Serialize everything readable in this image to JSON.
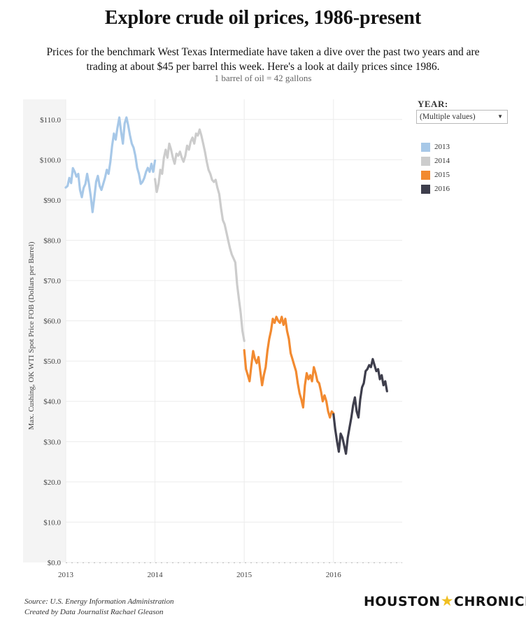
{
  "header": {
    "title": "Explore crude oil prices, 1986-present",
    "subtitle": "Prices for the benchmark West Texas Intermediate have taken a dive over the past two years and are trading at about $45 per barrel this week. Here's a look at daily prices since 1986.",
    "note": "1 barrel of oil = 42 gallons"
  },
  "filter": {
    "label": "YEAR:",
    "selected": "(Multiple values)",
    "dropdown_icon": "triangle-down-icon"
  },
  "legend": {
    "items": [
      {
        "label": "2013",
        "color": "#a7c8e8"
      },
      {
        "label": "2014",
        "color": "#cccccc"
      },
      {
        "label": "2015",
        "color": "#f28a30"
      },
      {
        "label": "2016",
        "color": "#3e3e4c"
      }
    ]
  },
  "footer": {
    "source": "Source:  U.S. Energy Information Administration",
    "credit": "Created by Data Journalist Rachael Gleason",
    "logo_left": "HOUSTON",
    "logo_right": "CHRONICLE"
  },
  "chart_data": {
    "type": "line",
    "title": "Explore crude oil prices, 1986-present",
    "ylabel": "Max. Cushing, OK WTI Spot Price FOB (Dollars per Barrel)",
    "xlabel": "",
    "ylim": [
      0,
      115
    ],
    "xlim": [
      2013.0,
      2016.77
    ],
    "y_ticks": [
      0,
      10,
      20,
      30,
      40,
      50,
      60,
      70,
      80,
      90,
      100,
      110
    ],
    "y_tick_labels": [
      "$0.0",
      "$10.0",
      "$20.0",
      "$30.0",
      "$40.0",
      "$50.0",
      "$60.0",
      "$70.0",
      "$80.0",
      "$90.0",
      "$100.0",
      "$110.0"
    ],
    "x_ticks": [
      2013,
      2014,
      2015,
      2016
    ],
    "x_tick_labels": [
      "2013",
      "2014",
      "2015",
      "2016"
    ],
    "grid": true,
    "legend_position": "right",
    "series": [
      {
        "name": "2013",
        "color": "#a7c8e8",
        "x": [
          2013.0,
          2013.02,
          2013.04,
          2013.06,
          2013.08,
          2013.1,
          2013.12,
          2013.14,
          2013.16,
          2013.18,
          2013.2,
          2013.22,
          2013.24,
          2013.26,
          2013.28,
          2013.3,
          2013.32,
          2013.34,
          2013.36,
          2013.38,
          2013.4,
          2013.42,
          2013.44,
          2013.46,
          2013.48,
          2013.5,
          2013.52,
          2013.54,
          2013.56,
          2013.58,
          2013.6,
          2013.62,
          2013.64,
          2013.66,
          2013.68,
          2013.7,
          2013.72,
          2013.74,
          2013.76,
          2013.78,
          2013.8,
          2013.82,
          2013.84,
          2013.86,
          2013.88,
          2013.9,
          2013.92,
          2013.94,
          2013.96,
          2013.98,
          2014.0
        ],
        "y": [
          93.1,
          93.5,
          95.5,
          94.2,
          97.9,
          97.0,
          95.8,
          96.5,
          92.5,
          90.7,
          93.0,
          94.0,
          96.5,
          94.0,
          91.0,
          87.0,
          90.5,
          94.5,
          96.0,
          93.5,
          92.5,
          94.0,
          95.5,
          97.5,
          96.5,
          99.5,
          103.5,
          106.5,
          105.0,
          108.0,
          110.5,
          107.0,
          104.0,
          109.0,
          110.5,
          108.5,
          106.0,
          104.0,
          103.0,
          101.0,
          98.0,
          96.5,
          94.0,
          94.5,
          95.5,
          97.0,
          98.0,
          97.0,
          99.0,
          97.0,
          99.8
        ]
      },
      {
        "name": "2014",
        "color": "#cccccc",
        "x": [
          2014.0,
          2014.02,
          2014.04,
          2014.06,
          2014.08,
          2014.1,
          2014.12,
          2014.14,
          2014.16,
          2014.18,
          2014.2,
          2014.22,
          2014.24,
          2014.26,
          2014.28,
          2014.3,
          2014.32,
          2014.34,
          2014.36,
          2014.38,
          2014.4,
          2014.42,
          2014.44,
          2014.46,
          2014.48,
          2014.5,
          2014.52,
          2014.54,
          2014.56,
          2014.58,
          2014.6,
          2014.62,
          2014.64,
          2014.66,
          2014.68,
          2014.7,
          2014.72,
          2014.74,
          2014.76,
          2014.78,
          2014.8,
          2014.82,
          2014.84,
          2014.86,
          2014.88,
          2014.9,
          2014.92,
          2014.94,
          2014.96,
          2014.98,
          2015.0
        ],
        "y": [
          95.2,
          92.0,
          94.0,
          97.5,
          96.5,
          100.5,
          102.5,
          100.5,
          104.0,
          102.5,
          100.5,
          99.0,
          101.5,
          101.0,
          102.0,
          100.5,
          99.5,
          101.0,
          103.5,
          102.5,
          104.5,
          105.5,
          104.0,
          106.5,
          106.0,
          107.5,
          106.0,
          104.0,
          102.0,
          99.5,
          97.5,
          96.5,
          95.0,
          94.5,
          95.0,
          93.0,
          91.5,
          88.0,
          85.0,
          84.0,
          82.0,
          80.0,
          78.0,
          76.5,
          75.5,
          74.5,
          69.0,
          65.5,
          62.0,
          57.5,
          55.0
        ]
      },
      {
        "name": "2015",
        "color": "#f28a30",
        "x": [
          2015.0,
          2015.02,
          2015.04,
          2015.06,
          2015.08,
          2015.1,
          2015.12,
          2015.14,
          2015.16,
          2015.18,
          2015.2,
          2015.22,
          2015.24,
          2015.26,
          2015.28,
          2015.3,
          2015.32,
          2015.34,
          2015.36,
          2015.38,
          2015.4,
          2015.42,
          2015.44,
          2015.46,
          2015.48,
          2015.5,
          2015.52,
          2015.54,
          2015.56,
          2015.58,
          2015.6,
          2015.62,
          2015.64,
          2015.66,
          2015.68,
          2015.7,
          2015.72,
          2015.74,
          2015.76,
          2015.78,
          2015.8,
          2015.82,
          2015.84,
          2015.86,
          2015.88,
          2015.9,
          2015.92,
          2015.94,
          2015.96,
          2015.98,
          2016.0
        ],
        "y": [
          52.7,
          48.0,
          46.5,
          45.0,
          49.0,
          52.5,
          50.5,
          49.5,
          51.0,
          47.5,
          44.0,
          46.5,
          48.5,
          52.5,
          55.5,
          57.5,
          60.5,
          59.5,
          61.0,
          60.0,
          59.5,
          61.0,
          59.0,
          60.5,
          57.5,
          55.5,
          52.0,
          50.5,
          49.0,
          47.5,
          44.5,
          42.0,
          40.5,
          38.5,
          44.0,
          47.0,
          45.5,
          46.5,
          45.0,
          48.5,
          47.0,
          45.0,
          44.5,
          42.5,
          40.0,
          41.5,
          40.0,
          37.5,
          36.0,
          37.5,
          37.0
        ]
      },
      {
        "name": "2016",
        "color": "#3e3e4c",
        "x": [
          2016.0,
          2016.02,
          2016.04,
          2016.06,
          2016.08,
          2016.1,
          2016.12,
          2016.14,
          2016.16,
          2016.18,
          2016.2,
          2016.22,
          2016.24,
          2016.26,
          2016.28,
          2016.3,
          2016.32,
          2016.34,
          2016.36,
          2016.38,
          2016.4,
          2016.42,
          2016.44,
          2016.46,
          2016.48,
          2016.5,
          2016.52,
          2016.54,
          2016.56,
          2016.58,
          2016.6
        ],
        "y": [
          36.8,
          33.0,
          30.0,
          27.5,
          32.0,
          31.0,
          29.0,
          27.0,
          31.0,
          33.5,
          36.0,
          39.0,
          41.0,
          37.5,
          36.0,
          40.5,
          43.5,
          44.5,
          47.5,
          48.0,
          49.0,
          48.5,
          50.5,
          49.0,
          47.5,
          48.0,
          45.5,
          46.5,
          44.0,
          45.0,
          42.5
        ]
      }
    ]
  }
}
